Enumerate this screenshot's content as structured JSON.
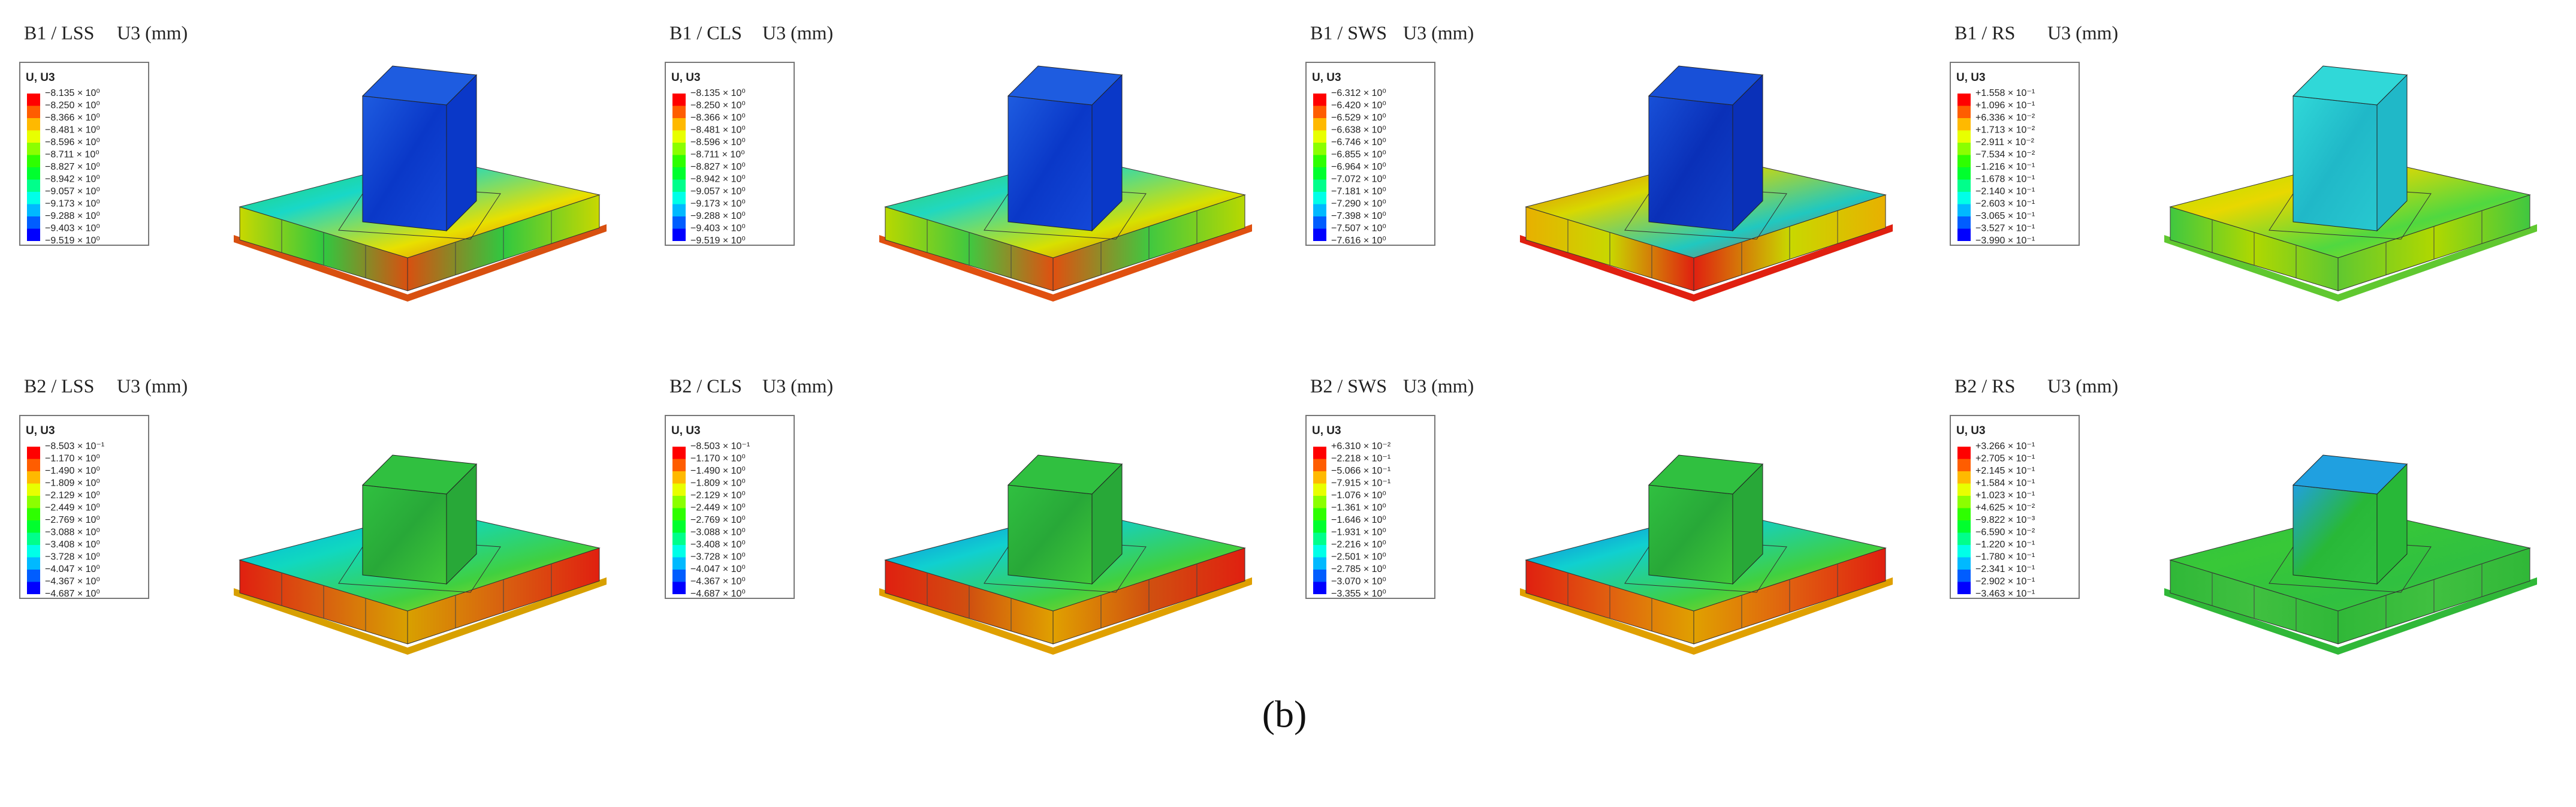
{
  "panels": [
    {
      "title": "B1 / LSS",
      "quantity": "U3 (mm)",
      "legend": {
        "header": "U, U3",
        "labels": [
          "−8.135 × 10⁰",
          "−8.250 × 10⁰",
          "−8.366 × 10⁰",
          "−8.481 × 10⁰",
          "−8.596 × 10⁰",
          "−8.711 × 10⁰",
          "−8.827 × 10⁰",
          "−8.942 × 10⁰",
          "−9.057 × 10⁰",
          "−9.173 × 10⁰",
          "−9.288 × 10⁰",
          "−9.403 × 10⁰",
          "−9.519 × 10⁰"
        ]
      }
    },
    {
      "title": "B1 / CLS",
      "quantity": "U3 (mm)",
      "legend": {
        "header": "U, U3",
        "labels": [
          "−8.135 × 10⁰",
          "−8.250 × 10⁰",
          "−8.366 × 10⁰",
          "−8.481 × 10⁰",
          "−8.596 × 10⁰",
          "−8.711 × 10⁰",
          "−8.827 × 10⁰",
          "−8.942 × 10⁰",
          "−9.057 × 10⁰",
          "−9.173 × 10⁰",
          "−9.288 × 10⁰",
          "−9.403 × 10⁰",
          "−9.519 × 10⁰"
        ]
      }
    },
    {
      "title": "B1 / SWS",
      "quantity": "U3 (mm)",
      "legend": {
        "header": "U, U3",
        "labels": [
          "−6.312 × 10⁰",
          "−6.420 × 10⁰",
          "−6.529 × 10⁰",
          "−6.638 × 10⁰",
          "−6.746 × 10⁰",
          "−6.855 × 10⁰",
          "−6.964 × 10⁰",
          "−7.072 × 10⁰",
          "−7.181 × 10⁰",
          "−7.290 × 10⁰",
          "−7.398 × 10⁰",
          "−7.507 × 10⁰",
          "−7.616 × 10⁰"
        ]
      }
    },
    {
      "title": "B1 / RS",
      "quantity": "U3 (mm)",
      "legend": {
        "header": "U, U3",
        "labels": [
          "+1.558 × 10⁻¹",
          "+1.096 × 10⁻¹",
          "+6.336 × 10⁻²",
          "+1.713 × 10⁻²",
          "−2.911 × 10⁻²",
          "−7.534 × 10⁻²",
          "−1.216 × 10⁻¹",
          "−1.678 × 10⁻¹",
          "−2.140 × 10⁻¹",
          "−2.603 × 10⁻¹",
          "−3.065 × 10⁻¹",
          "−3.527 × 10⁻¹",
          "−3.990 × 10⁻¹"
        ]
      }
    },
    {
      "title": "B2 / LSS",
      "quantity": "U3 (mm)",
      "legend": {
        "header": "U, U3",
        "labels": [
          "−8.503 × 10⁻¹",
          "−1.170 × 10⁰",
          "−1.490 × 10⁰",
          "−1.809 × 10⁰",
          "−2.129 × 10⁰",
          "−2.449 × 10⁰",
          "−2.769 × 10⁰",
          "−3.088 × 10⁰",
          "−3.408 × 10⁰",
          "−3.728 × 10⁰",
          "−4.047 × 10⁰",
          "−4.367 × 10⁰",
          "−4.687 × 10⁰"
        ]
      }
    },
    {
      "title": "B2 / CLS",
      "quantity": "U3 (mm)",
      "legend": {
        "header": "U, U3",
        "labels": [
          "−8.503 × 10⁻¹",
          "−1.170 × 10⁰",
          "−1.490 × 10⁰",
          "−1.809 × 10⁰",
          "−2.129 × 10⁰",
          "−2.449 × 10⁰",
          "−2.769 × 10⁰",
          "−3.088 × 10⁰",
          "−3.408 × 10⁰",
          "−3.728 × 10⁰",
          "−4.047 × 10⁰",
          "−4.367 × 10⁰",
          "−4.687 × 10⁰"
        ]
      }
    },
    {
      "title": "B2 / SWS",
      "quantity": "U3 (mm)",
      "legend": {
        "header": "U, U3",
        "labels": [
          "+6.310 × 10⁻²",
          "−2.218 × 10⁻¹",
          "−5.066 × 10⁻¹",
          "−7.915 × 10⁻¹",
          "−1.076 × 10⁰",
          "−1.361 × 10⁰",
          "−1.646 × 10⁰",
          "−1.931 × 10⁰",
          "−2.216 × 10⁰",
          "−2.501 × 10⁰",
          "−2.785 × 10⁰",
          "−3.070 × 10⁰",
          "−3.355 × 10⁰"
        ]
      }
    },
    {
      "title": "B2 / RS",
      "quantity": "U3 (mm)",
      "legend": {
        "header": "U, U3",
        "labels": [
          "+3.266 × 10⁻¹",
          "+2.705 × 10⁻¹",
          "+2.145 × 10⁻¹",
          "+1.584 × 10⁻¹",
          "+1.023 × 10⁻¹",
          "+4.625 × 10⁻²",
          "−9.822 × 10⁻³",
          "−6.590 × 10⁻²",
          "−1.220 × 10⁻¹",
          "−1.780 × 10⁻¹",
          "−2.341 × 10⁻¹",
          "−2.902 × 10⁻¹",
          "−3.463 × 10⁻¹"
        ]
      }
    }
  ],
  "caption": "(b)"
}
